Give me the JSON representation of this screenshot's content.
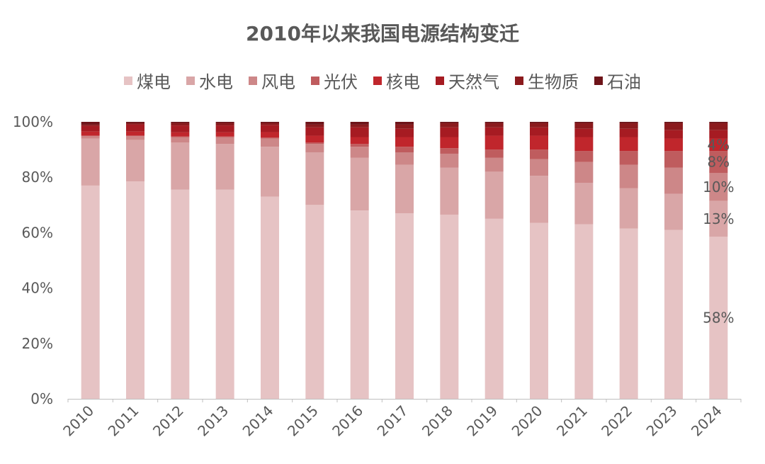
{
  "chart_data": {
    "type": "bar",
    "stacked": true,
    "title": "2010年以来我国电源结构变迁",
    "categories": [
      "2010",
      "2011",
      "2012",
      "2013",
      "2014",
      "2015",
      "2016",
      "2017",
      "2018",
      "2019",
      "2020",
      "2021",
      "2022",
      "2023",
      "2024"
    ],
    "series": [
      {
        "name": "煤电",
        "color": "#E6C3C4",
        "values": [
          77,
          78.5,
          75.5,
          75.5,
          73,
          70,
          68,
          67,
          66.5,
          65,
          63.5,
          63,
          61.5,
          61,
          58.5
        ]
      },
      {
        "name": "水电",
        "color": "#D9A6A7",
        "values": [
          17,
          15,
          17,
          16.5,
          18,
          19,
          19,
          17.5,
          17,
          17,
          17,
          15,
          14.5,
          13,
          13
        ]
      },
      {
        "name": "风电",
        "color": "#CD8788",
        "values": [
          1,
          1.5,
          2,
          2.5,
          3,
          3,
          4,
          4.5,
          5,
          5,
          6,
          7.5,
          8.5,
          9.5,
          10
        ]
      },
      {
        "name": "光伏",
        "color": "#BF5C5E",
        "values": [
          0,
          0,
          0.2,
          0.2,
          0.3,
          0.5,
          1,
          2,
          2,
          3,
          3.5,
          4,
          5,
          6,
          8
        ]
      },
      {
        "name": "核电",
        "color": "#C0262C",
        "values": [
          1.5,
          1.5,
          1.5,
          1.5,
          2,
          2.5,
          2.5,
          3.5,
          4,
          5,
          5,
          5,
          5,
          4.5,
          4.5
        ]
      },
      {
        "name": "天然气",
        "color": "#A61B22",
        "values": [
          2,
          2.5,
          2.5,
          2.5,
          2.5,
          3,
          3.5,
          3,
          3.5,
          3,
          3,
          3,
          3,
          3,
          3
        ]
      },
      {
        "name": "生物质",
        "color": "#8B1A1D",
        "values": [
          0.5,
          0.5,
          0.8,
          0.8,
          0.7,
          1,
          1,
          1.5,
          1.5,
          1.5,
          1.5,
          2,
          2,
          2.5,
          2.5
        ]
      },
      {
        "name": "石油",
        "color": "#6E1419",
        "values": [
          1,
          0.5,
          0.5,
          0.5,
          0.5,
          1,
          1,
          1,
          0.5,
          0.5,
          0.5,
          0.5,
          0.5,
          0.5,
          0.5
        ]
      }
    ],
    "ylim": [
      0,
      100
    ],
    "yticks": [
      "0%",
      "20%",
      "40%",
      "60%",
      "80%",
      "100%"
    ],
    "data_labels_2024": [
      "58%",
      "13%",
      "10%",
      "8%",
      "4%"
    ],
    "legend_position": "top",
    "grid": false
  }
}
